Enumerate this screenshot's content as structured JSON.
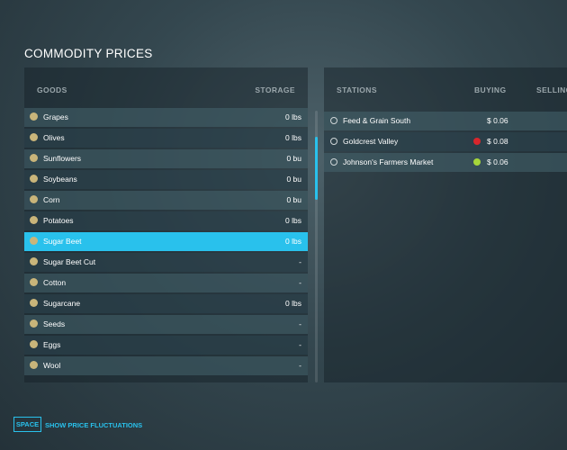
{
  "header": {
    "title": "COMMODITY PRICES"
  },
  "goods": {
    "columns": [
      "GOODS",
      "STORAGE"
    ],
    "rows": [
      {
        "name": "Grapes",
        "storage": "0 lbs"
      },
      {
        "name": "Olives",
        "storage": "0 lbs"
      },
      {
        "name": "Sunflowers",
        "storage": "0 bu"
      },
      {
        "name": "Soybeans",
        "storage": "0 bu"
      },
      {
        "name": "Corn",
        "storage": "0 bu"
      },
      {
        "name": "Potatoes",
        "storage": "0 lbs"
      },
      {
        "name": "Sugar Beet",
        "storage": "0 lbs"
      },
      {
        "name": "Sugar Beet Cut",
        "storage": "-"
      },
      {
        "name": "Cotton",
        "storage": "-"
      },
      {
        "name": "Sugarcane",
        "storage": "0 lbs"
      },
      {
        "name": "Seeds",
        "storage": "-"
      },
      {
        "name": "Eggs",
        "storage": "-"
      },
      {
        "name": "Wool",
        "storage": "-"
      }
    ]
  },
  "stations": {
    "columns": [
      "STATIONS",
      "BUYING",
      "SELLING"
    ],
    "rows": [
      {
        "name": "Feed & Grain South",
        "buying": "$ 0.06"
      },
      {
        "name": "Goldcrest Valley",
        "buying": "$ 0.08"
      },
      {
        "name": "Johnson's Farmers Market",
        "buying": "$ 0.06"
      }
    ]
  },
  "footer": {
    "key": "SPACE",
    "action": "SHOW PRICE FLUCTUATIONS"
  }
}
